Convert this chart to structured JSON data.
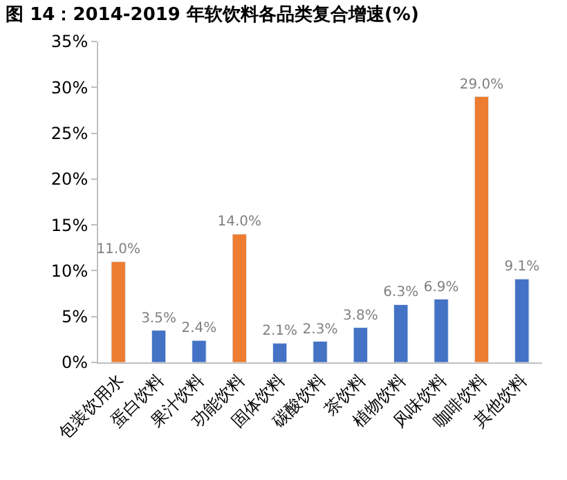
{
  "chart_data": {
    "type": "bar",
    "title": "图 14：2014-2019 年软饮料各品类复合增速(%)",
    "categories": [
      "包装饮用水",
      "蛋白饮料",
      "果汁饮料",
      "功能饮料",
      "固体饮料",
      "碳酸饮料",
      "茶饮料",
      "植物饮料",
      "风味饮料",
      "咖啡饮料",
      "其他饮料"
    ],
    "values": [
      11.0,
      3.5,
      2.4,
      14.0,
      2.1,
      2.3,
      3.8,
      6.3,
      6.9,
      29.0,
      9.1
    ],
    "colors": [
      "#ed7d31",
      "#4472c4",
      "#4472c4",
      "#ed7d31",
      "#4472c4",
      "#4472c4",
      "#4472c4",
      "#4472c4",
      "#4472c4",
      "#ed7d31",
      "#4472c4"
    ],
    "value_labels": [
      "11.0%",
      "3.5%",
      "2.4%",
      "14.0%",
      "2.1%",
      "2.3%",
      "3.8%",
      "6.3%",
      "6.9%",
      "29.0%",
      "9.1%"
    ],
    "ylim": [
      0,
      35
    ],
    "yticks": [
      {
        "value": 0,
        "label": "0%"
      },
      {
        "value": 5,
        "label": "5%"
      },
      {
        "value": 10,
        "label": "10%"
      },
      {
        "value": 15,
        "label": "15%"
      },
      {
        "value": 20,
        "label": "20%"
      },
      {
        "value": 25,
        "label": "25%"
      },
      {
        "value": 30,
        "label": "30%"
      },
      {
        "value": 35,
        "label": "35%"
      }
    ],
    "ylabel": null
  }
}
